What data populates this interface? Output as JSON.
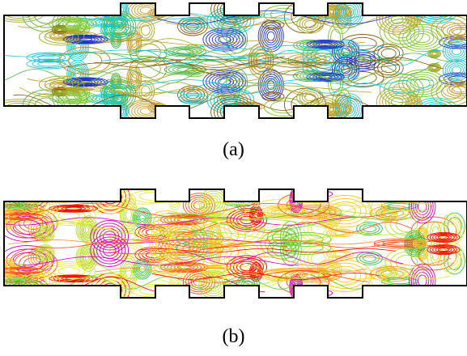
{
  "captions": {
    "top": "(a)",
    "bottom": "(b)"
  },
  "palettes": {
    "top": [
      "#00cfd8",
      "#22c4d6",
      "#4cb84a",
      "#7ac52a",
      "#a8a820",
      "#c89a2a",
      "#8a5a10",
      "#1d2fc8"
    ],
    "bottom": [
      "#ff0000",
      "#ff4a1a",
      "#ff8c2a",
      "#ffc81e",
      "#f0e830",
      "#b8e02a",
      "#5fcf2f",
      "#2fbf55",
      "#d400b8"
    ]
  }
}
